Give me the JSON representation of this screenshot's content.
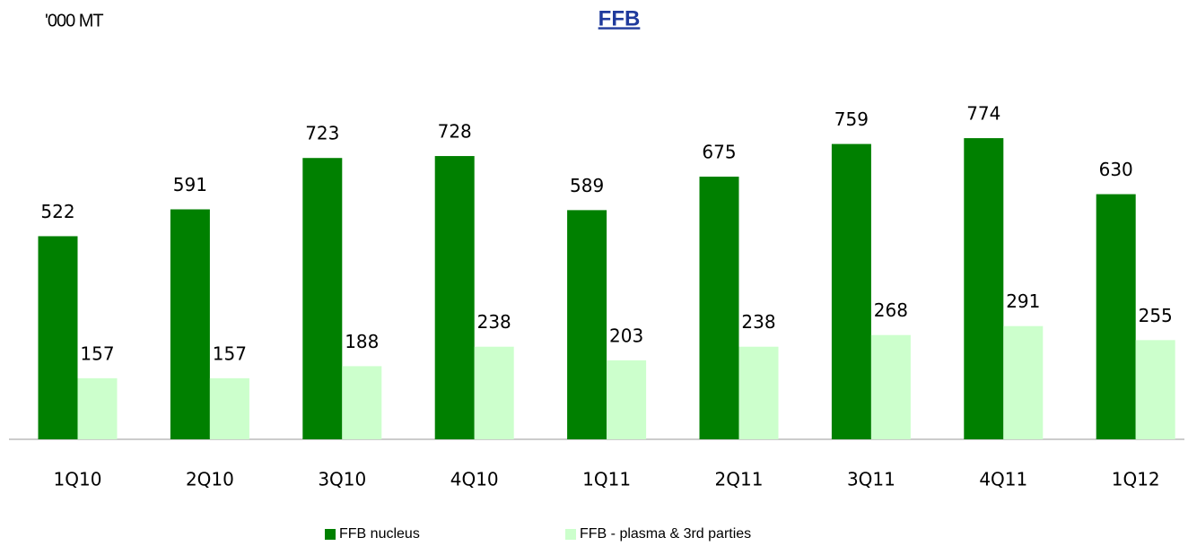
{
  "chart_data": {
    "type": "bar",
    "title": "FFB",
    "y_label": "'000 MT",
    "categories": [
      "1Q10",
      "2Q10",
      "3Q10",
      "4Q10",
      "1Q11",
      "2Q11",
      "3Q11",
      "4Q11",
      "1Q12"
    ],
    "series": [
      {
        "name": "FFB nucleus",
        "color": "#008000",
        "values": [
          522,
          591,
          723,
          728,
          589,
          675,
          759,
          774,
          630
        ]
      },
      {
        "name": "FFB - plasma & 3rd parties",
        "color": "#ccffcc",
        "values": [
          157,
          157,
          188,
          238,
          203,
          238,
          268,
          291,
          255
        ]
      }
    ],
    "legend": "bottom"
  }
}
